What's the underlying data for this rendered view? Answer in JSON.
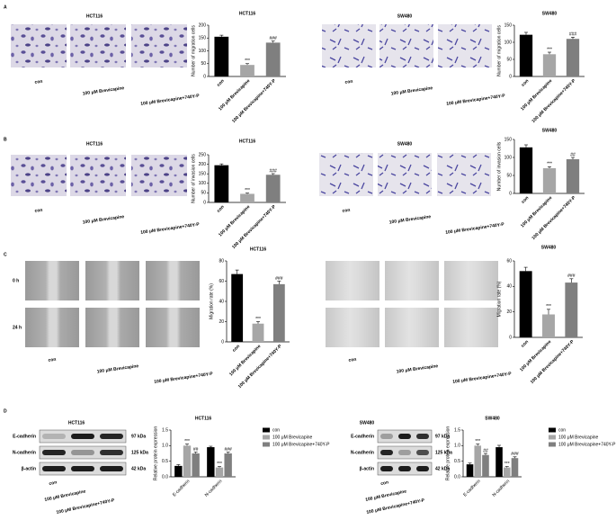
{
  "figure": {
    "panel_letters": [
      "A",
      "B",
      "C",
      "D"
    ],
    "cell_lines": [
      "HCT116",
      "SW480"
    ],
    "conditions": [
      "con",
      "100 μM Brevicapine",
      "100 μM Brevicapine+740Y-P"
    ],
    "time_points": [
      "0 h",
      "24 h"
    ],
    "proteins": [
      "E-cadherin",
      "N-cadherin",
      "β-actin"
    ],
    "sizes": [
      "97 kDa",
      "125 kDa",
      "42 kDa"
    ]
  },
  "chart_data": [
    {
      "type": "bar",
      "title": "HCT116",
      "ylabel": "Number of migration cells",
      "categories": [
        "con",
        "100 μM Brevicapine",
        "100 μM Brevicapine+740Y-P"
      ],
      "values": [
        155,
        45,
        132
      ],
      "errors": [
        6,
        5,
        6
      ],
      "annotations": [
        null,
        "***",
        "###"
      ],
      "colors": [
        "#000000",
        "#a6a6a6",
        "#7f7f7f"
      ],
      "ylim": [
        0,
        200
      ],
      "yticks": [
        0,
        50,
        100,
        150,
        200
      ]
    },
    {
      "type": "bar",
      "title": "SW480",
      "ylabel": "Number of migration cells",
      "categories": [
        "con",
        "100 μM Brevicapine",
        "100 μM Brevicapine+740Y-P"
      ],
      "values": [
        122,
        65,
        110
      ],
      "errors": [
        7,
        6,
        5
      ],
      "annotations": [
        null,
        "***",
        "###"
      ],
      "colors": [
        "#000000",
        "#a6a6a6",
        "#7f7f7f"
      ],
      "ylim": [
        0,
        150
      ],
      "yticks": [
        0,
        50,
        100,
        150
      ]
    },
    {
      "type": "bar",
      "title": "HCT116",
      "ylabel": "Number of invasion cells",
      "categories": [
        "con",
        "100 μM Brevicapine",
        "100 μM Brevicapine+740Y-P"
      ],
      "values": [
        195,
        45,
        145
      ],
      "errors": [
        7,
        4,
        6
      ],
      "annotations": [
        null,
        "***",
        "###"
      ],
      "colors": [
        "#000000",
        "#a6a6a6",
        "#7f7f7f"
      ],
      "ylim": [
        0,
        250
      ],
      "yticks": [
        0,
        50,
        100,
        150,
        200,
        250
      ]
    },
    {
      "type": "bar",
      "title": "SW480",
      "ylabel": "Number of invasion cells",
      "categories": [
        "con",
        "100 μM Brevicapine",
        "100 μM Brevicapine+740Y-P"
      ],
      "values": [
        128,
        70,
        95
      ],
      "errors": [
        7,
        4,
        5
      ],
      "annotations": [
        null,
        "***",
        "##"
      ],
      "colors": [
        "#000000",
        "#a6a6a6",
        "#7f7f7f"
      ],
      "ylim": [
        0,
        150
      ],
      "yticks": [
        0,
        50,
        100,
        150
      ]
    },
    {
      "type": "bar",
      "title": "HCT116",
      "ylabel": "Migration rate (%)",
      "categories": [
        "con",
        "100 μM Brevicapine",
        "100 μM Brevicapine+740Y-P"
      ],
      "values": [
        67,
        18,
        57
      ],
      "errors": [
        4,
        2,
        3
      ],
      "annotations": [
        null,
        "***",
        "###"
      ],
      "colors": [
        "#000000",
        "#a6a6a6",
        "#7f7f7f"
      ],
      "ylim": [
        0,
        80
      ],
      "yticks": [
        0,
        20,
        40,
        60,
        80
      ]
    },
    {
      "type": "bar",
      "title": "SW480",
      "ylabel": "Migration rate (%)",
      "categories": [
        "con",
        "100 μM Brevicapine",
        "100 μM Brevicapine+740Y-P"
      ],
      "values": [
        52,
        18,
        43
      ],
      "errors": [
        3,
        4,
        3
      ],
      "annotations": [
        null,
        "***",
        "###"
      ],
      "colors": [
        "#000000",
        "#a6a6a6",
        "#7f7f7f"
      ],
      "ylim": [
        0,
        60
      ],
      "yticks": [
        0,
        20,
        40,
        60
      ]
    },
    {
      "type": "grouped_bar",
      "title": "HCT116",
      "ylabel": "Relative protein expression",
      "categories": [
        "E-cadherin",
        "N-cadherin"
      ],
      "legend": "right",
      "series": [
        {
          "name": "con",
          "color": "#000000",
          "values": [
            0.35,
            0.95
          ],
          "errors": [
            0.04,
            0.03
          ],
          "annotations": [
            null,
            null
          ]
        },
        {
          "name": "100 μM Brevicapine",
          "color": "#a6a6a6",
          "values": [
            1.0,
            0.3
          ],
          "errors": [
            0.05,
            0.03
          ],
          "annotations": [
            "***",
            "***"
          ]
        },
        {
          "name": "100 μM Brevicapine+740Y-P",
          "color": "#7f7f7f",
          "values": [
            0.75,
            0.75
          ],
          "errors": [
            0.04,
            0.04
          ],
          "annotations": [
            "##",
            "###"
          ]
        }
      ],
      "ylim": [
        0,
        1.5
      ],
      "yticks": [
        {
          "value": 0,
          "label": "0.0"
        },
        0.5,
        {
          "value": 1,
          "label": "1.0"
        },
        1.5
      ]
    },
    {
      "type": "grouped_bar",
      "title": "SW480",
      "ylabel": "Relative protein expression",
      "categories": [
        "E-cadherin",
        "N-cadherin"
      ],
      "legend": "right",
      "series": [
        {
          "name": "con",
          "color": "#000000",
          "values": [
            0.4,
            0.95
          ],
          "errors": [
            0.04,
            0.06
          ],
          "annotations": [
            null,
            null
          ]
        },
        {
          "name": "100 μM Brevicapine",
          "color": "#a6a6a6",
          "values": [
            1.0,
            0.3
          ],
          "errors": [
            0.05,
            0.03
          ],
          "annotations": [
            "***",
            "***"
          ]
        },
        {
          "name": "100 μM Brevicapine+740Y-P",
          "color": "#7f7f7f",
          "values": [
            0.7,
            0.6
          ],
          "errors": [
            0.05,
            0.04
          ],
          "annotations": [
            "##",
            "###"
          ]
        }
      ],
      "ylim": [
        0,
        1.5
      ],
      "yticks": [
        {
          "value": 0,
          "label": "0.0"
        },
        0.5,
        {
          "value": 1,
          "label": "1.0"
        },
        1.5
      ]
    }
  ]
}
